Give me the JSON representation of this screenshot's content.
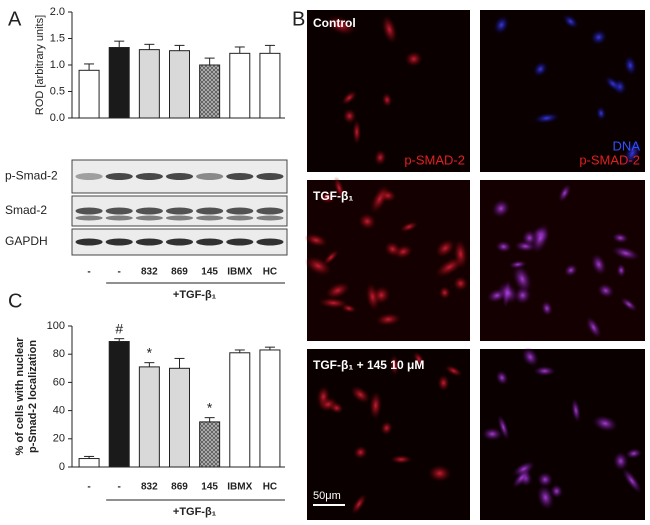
{
  "chart_data": [
    {
      "type": "bar",
      "panel_label": "A",
      "y_label": [
        "ROD [arbitrary units]"
      ],
      "categories": [
        "-",
        "-",
        "832",
        "869",
        "145",
        "IBMX",
        "HC"
      ],
      "values": [
        0.9,
        1.33,
        1.29,
        1.27,
        1.0,
        1.22,
        1.22
      ],
      "errors": [
        0.12,
        0.12,
        0.1,
        0.1,
        0.13,
        0.12,
        0.15
      ],
      "colors": [
        "#ffffff",
        "#1a1a1a",
        "#d9d9d9",
        "#d9d9d9",
        "hatch",
        "#ffffff",
        "#ffffff"
      ],
      "ylim": [
        0,
        2
      ],
      "yticks": [
        {
          "value": 0,
          "label": "0.0"
        },
        0.5,
        {
          "value": 1,
          "label": "1.0"
        },
        1.5,
        {
          "value": 2,
          "label": "2.0"
        }
      ],
      "group_label": "+TGF-β₁",
      "blot_labels": [
        "p-Smad-2",
        "Smad-2",
        "GAPDH"
      ]
    },
    {
      "type": "bar",
      "panel_label": "C",
      "y_label": [
        "% of cells with nuclear",
        "p-Smad-2 localization"
      ],
      "categories": [
        "-",
        "-",
        "832",
        "869",
        "145",
        "IBMX",
        "HC"
      ],
      "values": [
        6,
        89,
        71,
        70,
        32,
        81,
        83
      ],
      "errors": [
        1.5,
        2,
        3,
        7,
        3,
        2,
        2
      ],
      "value_annotations": [
        null,
        "#",
        "*",
        null,
        "*",
        null,
        null
      ],
      "colors": [
        "#ffffff",
        "#1a1a1a",
        "#d9d9d9",
        "#d9d9d9",
        "hatch",
        "#ffffff",
        "#ffffff"
      ],
      "ylim": [
        0,
        100
      ],
      "yticks": [
        0,
        20,
        40,
        60,
        80,
        100
      ],
      "group_label": "+TGF-β₁"
    }
  ],
  "panel_b": {
    "panel_label": "B",
    "rows": [
      "Control",
      "TGF-β₁",
      "TGF-β₁ + 145 10 μM"
    ],
    "channel_label": "p-SMAD-2",
    "dna_label": "DNA",
    "scale_bar": "50μm"
  }
}
